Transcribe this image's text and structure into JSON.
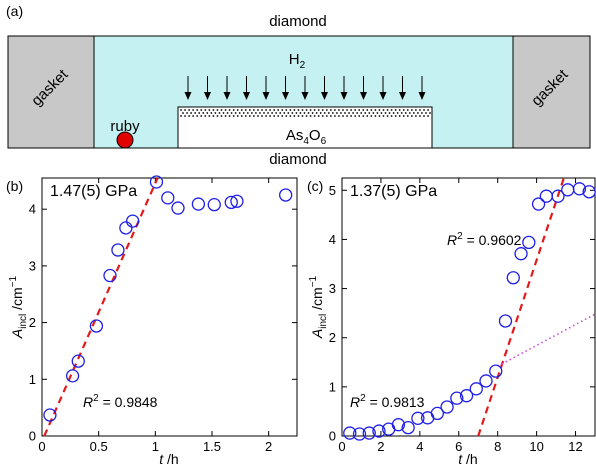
{
  "panel_a": {
    "panel_label": "(a)",
    "top_label": "diamond",
    "bottom_label": "diamond",
    "gasket_left": "gasket",
    "gasket_right": "gasket",
    "medium_base": "H",
    "medium_sub": "2",
    "ruby_label": "ruby",
    "sample_base1": "As",
    "sample_sub1": "4",
    "sample_base2": "O",
    "sample_sub2": "6",
    "colors": {
      "medium": "#c6f1f2",
      "gasket": "#c8c8c8",
      "ruby": "#e10000",
      "sample": "#ffffff"
    }
  },
  "chart_data": [
    {
      "type": "scatter",
      "panel_label": "(b)",
      "pressure_label": "1.47(5) GPa",
      "xlabel_var": "t",
      "xlabel_unit": " /h",
      "ylabel_var": "A",
      "ylabel_sub": "incl",
      "ylabel_unit": " /cm",
      "ylabel_exp": "−1",
      "xlim": [
        0,
        2.25
      ],
      "ylim": [
        0,
        4.55
      ],
      "xticks": [
        0,
        0.5,
        1,
        1.5,
        2
      ],
      "xtick_labels": [
        "0",
        "0.5",
        "1",
        "1.5",
        "2"
      ],
      "yticks": [
        0,
        1,
        2,
        3,
        4
      ],
      "ytick_labels": [
        "0",
        "1",
        "2",
        "3",
        "4"
      ],
      "points": {
        "x": [
          0.07,
          0.27,
          0.32,
          0.48,
          0.6,
          0.67,
          0.74,
          0.8,
          1.01,
          1.11,
          1.2,
          1.38,
          1.52,
          1.67,
          1.72,
          2.15
        ],
        "y": [
          0.37,
          1.06,
          1.32,
          1.94,
          2.83,
          3.28,
          3.67,
          3.79,
          4.48,
          4.2,
          4.02,
          4.09,
          4.08,
          4.12,
          4.14,
          4.25
        ]
      },
      "fits": [
        {
          "x": [
            0.02,
            1.02
          ],
          "y": [
            0.0,
            4.55
          ],
          "style": "dashed",
          "color": "#e31a1c"
        }
      ],
      "annotations": [
        {
          "base": "R",
          "exp": "2",
          "text": " = 0.9848"
        }
      ],
      "marker_color": "#1f1fe6"
    },
    {
      "type": "scatter",
      "panel_label": "(c)",
      "pressure_label": "1.37(5) GPa",
      "xlabel_var": "t",
      "xlabel_unit": " /h",
      "ylabel_var": "A",
      "ylabel_sub": "incl",
      "ylabel_unit": " /cm",
      "ylabel_exp": "−1",
      "xlim": [
        0,
        13
      ],
      "ylim": [
        0,
        5.25
      ],
      "xticks": [
        0,
        2,
        4,
        6,
        8,
        10,
        12
      ],
      "xtick_labels": [
        "0",
        "2",
        "4",
        "6",
        "8",
        "10",
        "12"
      ],
      "yticks": [
        0,
        1,
        2,
        3,
        4,
        5
      ],
      "ytick_labels": [
        "0",
        "1",
        "2",
        "3",
        "4",
        "5"
      ],
      "points": {
        "x": [
          0.4,
          0.9,
          1.4,
          1.9,
          2.4,
          2.9,
          3.4,
          3.9,
          4.4,
          4.9,
          5.4,
          5.9,
          6.4,
          6.9,
          7.4,
          7.9,
          8.4,
          8.8,
          9.2,
          9.6,
          10.1,
          10.5,
          11.1,
          11.6,
          12.2,
          12.7
        ],
        "y": [
          0.06,
          0.04,
          0.06,
          0.1,
          0.14,
          0.23,
          0.17,
          0.36,
          0.37,
          0.46,
          0.59,
          0.77,
          0.82,
          0.96,
          1.12,
          1.32,
          2.34,
          3.22,
          3.71,
          3.94,
          4.72,
          4.88,
          4.88,
          5.01,
          5.03,
          4.97
        ]
      },
      "fits": [
        {
          "x": [
            7.0,
            11.4
          ],
          "y": [
            0.0,
            5.25
          ],
          "style": "dashed",
          "color": "#e31a1c"
        },
        {
          "x": [
            8.0,
            13.0
          ],
          "y": [
            1.42,
            2.48
          ],
          "style": "dotted",
          "color": "#d24ad8"
        }
      ],
      "annotations": [
        {
          "base": "R",
          "exp": "2",
          "text": " = 0.9602"
        },
        {
          "base": "R",
          "exp": "2",
          "text": " = 0.9813"
        }
      ],
      "marker_color": "#1f1fe6"
    }
  ]
}
